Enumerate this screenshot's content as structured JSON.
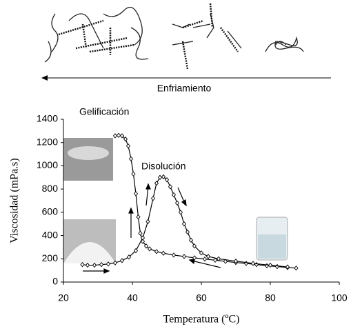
{
  "chart_data": {
    "type": "line",
    "header_label": "Enfriamiento",
    "xlabel": "Temperatura (ºC)",
    "ylabel": "Viscosidad (mPa.s)",
    "annotations": [
      "Gelificación",
      "Disolución"
    ],
    "xlim": [
      20,
      100
    ],
    "xticks": [
      20,
      40,
      60,
      80,
      100
    ],
    "ylim": [
      0,
      1400
    ],
    "yticks": [
      0,
      200,
      400,
      600,
      800,
      1000,
      1200,
      1400
    ],
    "series": [
      {
        "color": "#000000",
        "x": [
          87.5,
          85,
          82,
          79,
          76,
          73,
          70,
          67,
          64,
          61,
          58,
          55,
          52,
          49,
          47,
          45,
          44,
          43,
          42.3,
          41.7,
          41,
          40.3,
          39.6,
          38.8,
          38,
          37,
          36,
          35
        ],
        "values": [
          120,
          125,
          133,
          140,
          150,
          160,
          168,
          178,
          188,
          198,
          208,
          220,
          232,
          248,
          262,
          285,
          310,
          350,
          420,
          560,
          760,
          930,
          1060,
          1170,
          1230,
          1258,
          1262,
          1258
        ]
      },
      {
        "color": "#000000",
        "x": [
          25.5,
          27,
          29,
          31,
          33,
          35,
          37,
          39,
          41,
          43,
          44.5,
          46,
          47,
          48,
          49,
          50,
          51,
          52,
          53,
          54,
          55,
          56,
          57,
          58,
          60,
          62,
          65,
          70,
          75,
          80,
          85
        ],
        "values": [
          150,
          145,
          145,
          150,
          155,
          165,
          185,
          215,
          270,
          380,
          520,
          720,
          850,
          900,
          905,
          880,
          820,
          750,
          680,
          600,
          500,
          430,
          360,
          310,
          250,
          220,
          200,
          180,
          160,
          145,
          130
        ]
      }
    ]
  }
}
